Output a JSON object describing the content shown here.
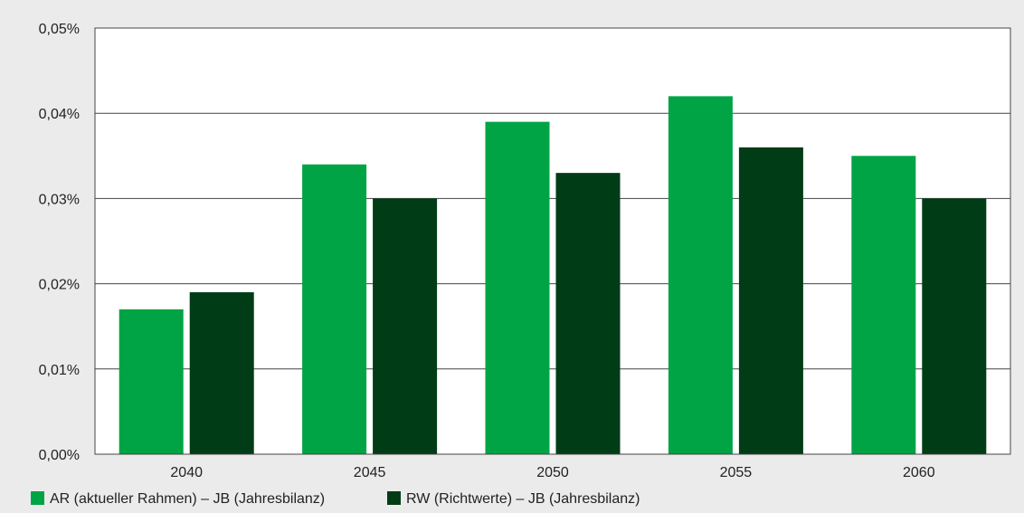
{
  "chart_data": {
    "type": "bar",
    "categories": [
      "2040",
      "2045",
      "2050",
      "2055",
      "2060"
    ],
    "series": [
      {
        "name": "AR (aktueller Rahmen) – JB (Jahresbilanz)",
        "color": "#00a445",
        "values": [
          0.017,
          0.034,
          0.039,
          0.042,
          0.035
        ]
      },
      {
        "name": "RW (Richtwerte) – JB (Jahresbilanz)",
        "color": "#003c16",
        "values": [
          0.019,
          0.03,
          0.033,
          0.036,
          0.03
        ]
      }
    ],
    "y_ticks": [
      "0,00%",
      "0,01%",
      "0,02%",
      "0,03%",
      "0,04%",
      "0,05%"
    ],
    "ylim": [
      0,
      0.05
    ],
    "grid": true,
    "legend_position": "bottom-left",
    "background_color": "#ebebeb",
    "plot_background": "#ffffff"
  }
}
